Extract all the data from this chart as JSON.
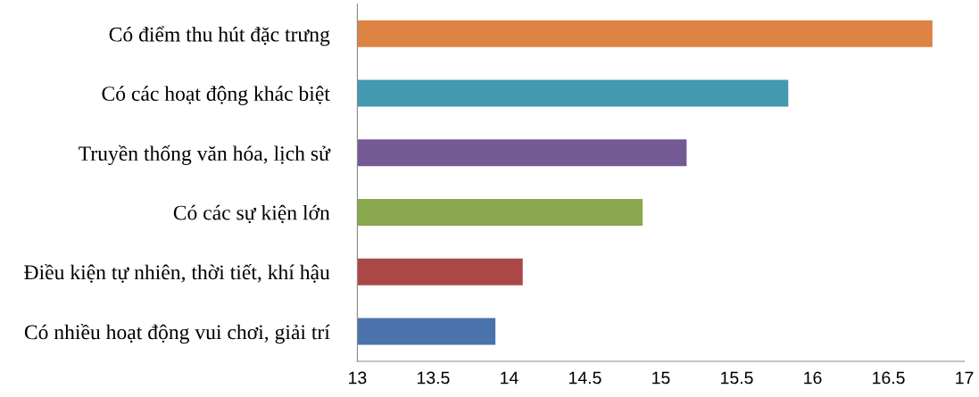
{
  "chart_data": {
    "type": "bar",
    "orientation": "horizontal",
    "categories": [
      "Có điểm thu hút đặc trưng",
      "Có các hoạt động khác biệt",
      "Truyền thống văn hóa, lịch sử",
      "Có các sự kiện lớn",
      "Điều kiện tự nhiên, thời tiết, khí hậu",
      "Có nhiều hoạt động vui chơi, giải trí"
    ],
    "values": [
      16.79,
      15.84,
      15.17,
      14.88,
      14.09,
      13.91
    ],
    "colors": [
      "#dd8444",
      "#4299b0",
      "#735a94",
      "#8aa84e",
      "#ab4846",
      "#4a73ab"
    ],
    "xlim": [
      13,
      17
    ],
    "xticks": [
      13,
      13.5,
      14,
      14.5,
      15,
      15.5,
      16,
      16.5,
      17
    ],
    "grid": false,
    "legend": false
  }
}
